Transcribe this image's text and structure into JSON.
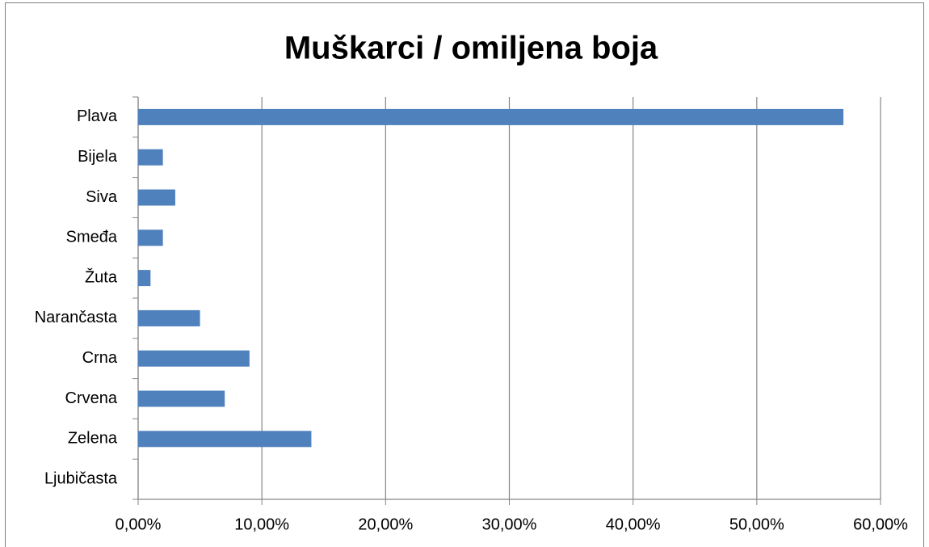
{
  "chart_data": {
    "type": "bar",
    "orientation": "horizontal",
    "title": "Muškarci / omiljena boja",
    "categories": [
      "Plava",
      "Bijela",
      "Siva",
      "Smeđa",
      "Žuta",
      "Narančasta",
      "Crna",
      "Crvena",
      "Zelena",
      "Ljubičasta"
    ],
    "values": [
      57,
      2,
      3,
      2,
      1,
      5,
      9,
      7,
      14,
      0
    ],
    "color": "#4f81bd",
    "xlim": [
      0,
      60
    ],
    "xticks": [
      {
        "value": 0,
        "label": "0,00%"
      },
      {
        "value": 10,
        "label": "10,00%"
      },
      {
        "value": 20,
        "label": "20,00%"
      },
      {
        "value": 30,
        "label": "30,00%"
      },
      {
        "value": 40,
        "label": "40,00%"
      },
      {
        "value": 50,
        "label": "50,00%"
      },
      {
        "value": 60,
        "label": "60,00%"
      }
    ],
    "grid": true
  }
}
